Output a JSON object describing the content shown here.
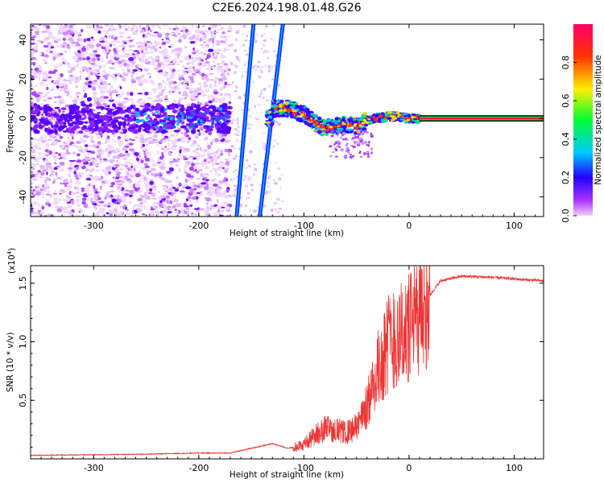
{
  "title": "C2E6.2024.198.01.48.G26",
  "chart_data": [
    {
      "type": "heatmap",
      "xlabel": "Height of straight line (km)",
      "ylabel": "Frequency (Hz)",
      "xlim": [
        -360,
        128
      ],
      "ylim": [
        -50,
        48
      ],
      "x_ticks": [
        -300,
        -200,
        -100,
        0,
        100
      ],
      "y_ticks": [
        -40,
        -20,
        0,
        20,
        40
      ],
      "colorbar": {
        "label": "Normalized spectral amplitude",
        "range": [
          0,
          1
        ],
        "ticks": [
          "0.0",
          "0.2",
          "0.4",
          "0.6",
          "0.8"
        ],
        "colormap": "rainbow (violet to red)"
      },
      "features": {
        "noise_region_x": [
          -360,
          -170
        ],
        "streak_1": {
          "x": [
            -164,
            -148
          ],
          "y": [
            -50,
            48
          ]
        },
        "streak_2": {
          "x": [
            -142,
            -120
          ],
          "y": [
            -50,
            48
          ]
        },
        "signal_track": [
          {
            "x": -130,
            "y": 5
          },
          {
            "x": -115,
            "y": 5
          },
          {
            "x": -100,
            "y": 2
          },
          {
            "x": -90,
            "y": -2
          },
          {
            "x": -80,
            "y": -5
          },
          {
            "x": -70,
            "y": -4
          },
          {
            "x": -60,
            "y": -3
          },
          {
            "x": -50,
            "y": -4
          },
          {
            "x": -40,
            "y": -1
          },
          {
            "x": -30,
            "y": 0
          },
          {
            "x": -20,
            "y": 1
          },
          {
            "x": -10,
            "y": 1
          },
          {
            "x": 0,
            "y": 0
          },
          {
            "x": 10,
            "y": 0
          },
          {
            "x": 128,
            "y": 0
          }
        ]
      }
    },
    {
      "type": "line",
      "xlabel": "Height of straight line (km)",
      "ylabel": "SNR (10 * v/v)",
      "scale_note": "(x10",
      "scale_exp": "4",
      "scale_close": ")",
      "xlim": [
        -360,
        128
      ],
      "ylim": [
        0,
        1.65
      ],
      "x_ticks": [
        -300,
        -200,
        -100,
        0,
        100
      ],
      "y_ticks": [
        "0.5",
        "1.0",
        "1.5"
      ],
      "y_tick_values": [
        0.5,
        1.0,
        1.5
      ],
      "line_color": "#ee3333",
      "envelope": [
        {
          "x": -360,
          "y": 0.03
        },
        {
          "x": -300,
          "y": 0.035
        },
        {
          "x": -250,
          "y": 0.04
        },
        {
          "x": -200,
          "y": 0.05
        },
        {
          "x": -170,
          "y": 0.05
        },
        {
          "x": -150,
          "y": 0.09
        },
        {
          "x": -130,
          "y": 0.13
        },
        {
          "x": -115,
          "y": 0.09
        },
        {
          "x": -100,
          "y": 0.12
        },
        {
          "x": -90,
          "y": 0.2
        },
        {
          "x": -80,
          "y": 0.26
        },
        {
          "x": -70,
          "y": 0.25
        },
        {
          "x": -60,
          "y": 0.22
        },
        {
          "x": -50,
          "y": 0.27
        },
        {
          "x": -40,
          "y": 0.45
        },
        {
          "x": -30,
          "y": 0.75
        },
        {
          "x": -20,
          "y": 1.0
        },
        {
          "x": -10,
          "y": 1.05
        },
        {
          "x": 0,
          "y": 1.1
        },
        {
          "x": 10,
          "y": 1.25
        },
        {
          "x": 20,
          "y": 1.4
        },
        {
          "x": 30,
          "y": 1.52
        },
        {
          "x": 50,
          "y": 1.56
        },
        {
          "x": 80,
          "y": 1.55
        },
        {
          "x": 110,
          "y": 1.53
        },
        {
          "x": 128,
          "y": 1.52
        }
      ]
    }
  ]
}
